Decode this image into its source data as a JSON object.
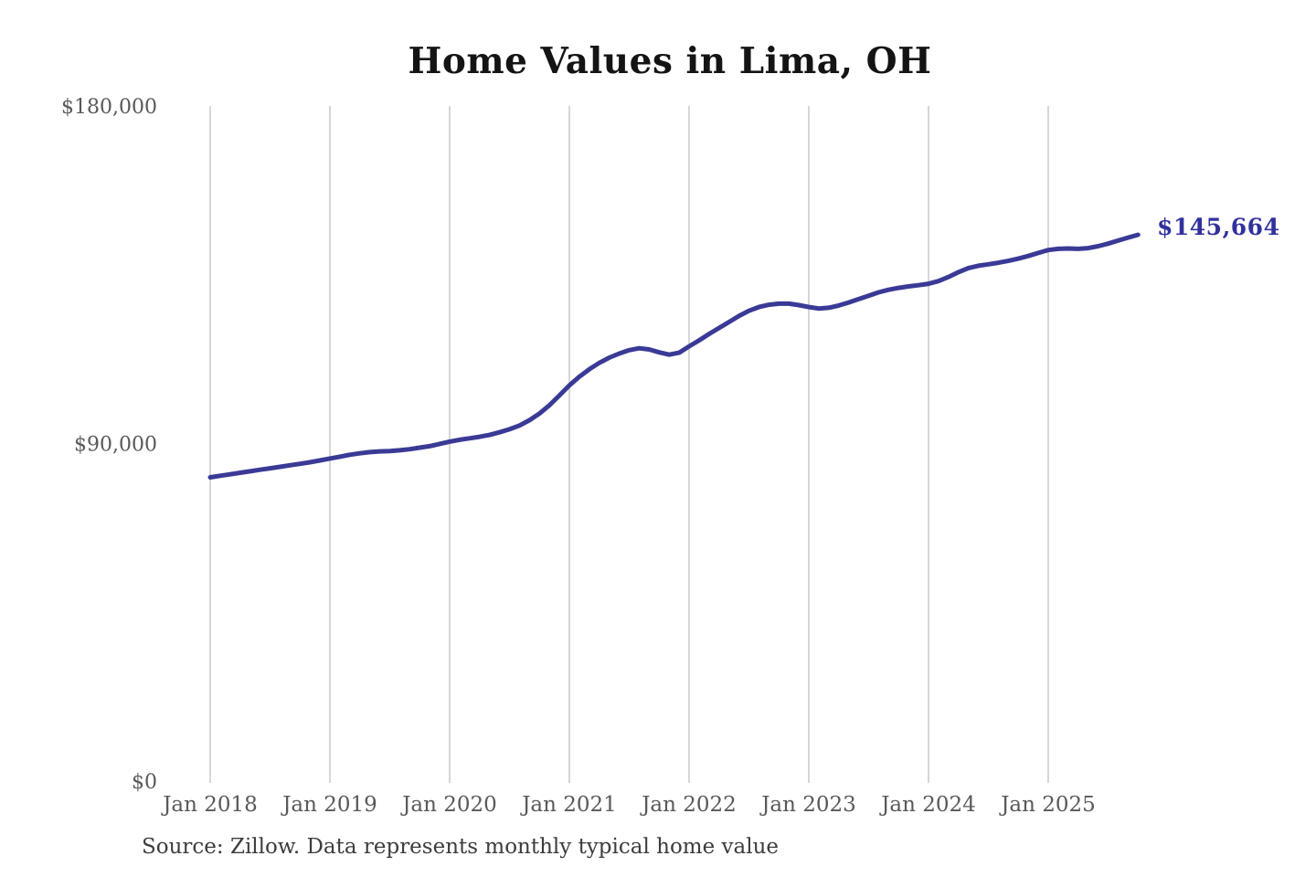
{
  "page": {
    "background_color": "#ffffff"
  },
  "chart_data": {
    "type": "line",
    "title": "Home Values in Lima, OH",
    "source_note": "Source: Zillow. Data represents monthly typical home value",
    "end_label": "$145,664",
    "end_value": 145664,
    "xlabel": "",
    "ylabel": "",
    "ylim": [
      0,
      180000
    ],
    "y_ticks": [
      0,
      90000,
      180000
    ],
    "y_tick_labels": [
      "$0",
      "$90,000",
      "$180,000"
    ],
    "x_tick_labels": [
      "Jan 2018",
      "Jan 2019",
      "Jan 2020",
      "Jan 2021",
      "Jan 2022",
      "Jan 2023",
      "Jan 2024",
      "Jan 2025"
    ],
    "grid": "vertical-only",
    "legend": "none",
    "line_color": "#3a3a96",
    "end_label_color": "#31319e",
    "gridline_color": "#cbcbcb",
    "tick_label_color": "#595959",
    "title_color": "#141414",
    "source_color": "#3c3c3c",
    "series": [
      {
        "name": "Monthly typical home value",
        "months": [
          "Jan 2018",
          "Feb 2018",
          "Mar 2018",
          "Apr 2018",
          "May 2018",
          "Jun 2018",
          "Jul 2018",
          "Aug 2018",
          "Sep 2018",
          "Oct 2018",
          "Nov 2018",
          "Dec 2018",
          "Jan 2019",
          "Feb 2019",
          "Mar 2019",
          "Apr 2019",
          "May 2019",
          "Jun 2019",
          "Jul 2019",
          "Aug 2019",
          "Sep 2019",
          "Oct 2019",
          "Nov 2019",
          "Dec 2019",
          "Jan 2020",
          "Feb 2020",
          "Mar 2020",
          "Apr 2020",
          "May 2020",
          "Jun 2020",
          "Jul 2020",
          "Aug 2020",
          "Sep 2020",
          "Oct 2020",
          "Nov 2020",
          "Dec 2020",
          "Jan 2021",
          "Feb 2021",
          "Mar 2021",
          "Apr 2021",
          "May 2021",
          "Jun 2021",
          "Jul 2021",
          "Aug 2021",
          "Sep 2021",
          "Oct 2021",
          "Nov 2021",
          "Dec 2021",
          "Jan 2022",
          "Feb 2022",
          "Mar 2022",
          "Apr 2022",
          "May 2022",
          "Jun 2022",
          "Jul 2022",
          "Aug 2022",
          "Sep 2022",
          "Oct 2022",
          "Nov 2022",
          "Dec 2022",
          "Jan 2023",
          "Feb 2023",
          "Mar 2023",
          "Apr 2023",
          "May 2023",
          "Jun 2023",
          "Jul 2023",
          "Aug 2023",
          "Sep 2023",
          "Oct 2023",
          "Nov 2023",
          "Dec 2023",
          "Jan 2024",
          "Feb 2024",
          "Mar 2024",
          "Apr 2024",
          "May 2024",
          "Jun 2024",
          "Jul 2024",
          "Aug 2024",
          "Sep 2024",
          "Oct 2024",
          "Nov 2024",
          "Dec 2024",
          "Jan 2025",
          "Feb 2025",
          "Mar 2025",
          "Apr 2025",
          "May 2025",
          "Jun 2025",
          "Jul 2025",
          "Aug 2025",
          "Sep 2025",
          "Oct 2025"
        ],
        "values": [
          81000,
          81400,
          81800,
          82200,
          82600,
          83000,
          83400,
          83800,
          84200,
          84600,
          85000,
          85500,
          86000,
          86500,
          87000,
          87400,
          87700,
          87900,
          88000,
          88200,
          88500,
          88900,
          89300,
          89900,
          90500,
          91000,
          91400,
          91800,
          92300,
          93000,
          93800,
          94800,
          96200,
          98000,
          100200,
          102800,
          105500,
          107800,
          109800,
          111500,
          112900,
          114000,
          114900,
          115400,
          115100,
          114300,
          113700,
          114200,
          115900,
          117500,
          119200,
          120800,
          122400,
          124000,
          125400,
          126400,
          127000,
          127300,
          127300,
          126900,
          126400,
          126000,
          126200,
          126800,
          127600,
          128500,
          129400,
          130300,
          131000,
          131500,
          131900,
          132200,
          132600,
          133300,
          134400,
          135700,
          136800,
          137400,
          137800,
          138200,
          138700,
          139300,
          140000,
          140800,
          141600,
          141900,
          142000,
          141900,
          142100,
          142600,
          143300,
          144100,
          144900,
          145664
        ]
      }
    ]
  }
}
